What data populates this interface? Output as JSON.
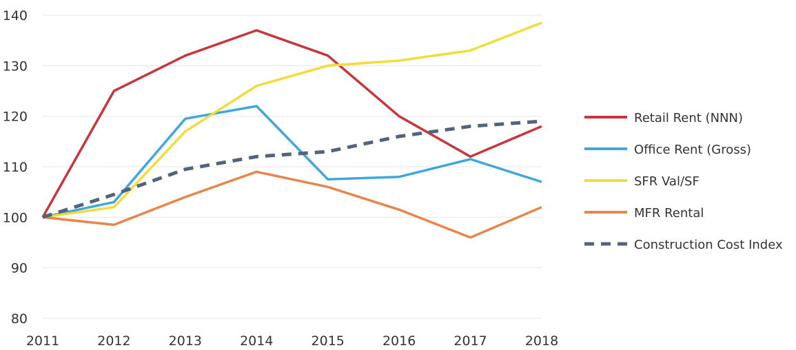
{
  "chart_data": {
    "type": "line",
    "x": [
      "2011",
      "2012",
      "2013",
      "2014",
      "2015",
      "2016",
      "2017",
      "2018"
    ],
    "ylim": [
      80,
      140
    ],
    "yticks": [
      80,
      90,
      100,
      110,
      120,
      130,
      140
    ],
    "grid": true,
    "legend_position": "right",
    "series": [
      {
        "name": "Retail Rent (NNN)",
        "color": "#c8353a",
        "dashed": false,
        "values": [
          100,
          125,
          132,
          137,
          132,
          120,
          112,
          118
        ]
      },
      {
        "name": "Office Rent (Gross)",
        "color": "#3fa7dc",
        "dashed": false,
        "values": [
          100,
          103,
          119.5,
          122,
          107.5,
          108,
          111.5,
          107
        ]
      },
      {
        "name": "SFR Val/SF",
        "color": "#f2dc3a",
        "dashed": false,
        "values": [
          100,
          102,
          117,
          126,
          130,
          131,
          133,
          138.5
        ]
      },
      {
        "name": "MFR Rental",
        "color": "#e8864a",
        "dashed": false,
        "values": [
          100,
          98.5,
          104,
          109,
          106,
          101.5,
          96,
          102
        ]
      },
      {
        "name": "Construction Cost Index",
        "color": "#53637a",
        "dashed": true,
        "values": [
          100,
          104.5,
          109.5,
          112,
          113,
          116,
          118,
          119
        ]
      }
    ]
  }
}
